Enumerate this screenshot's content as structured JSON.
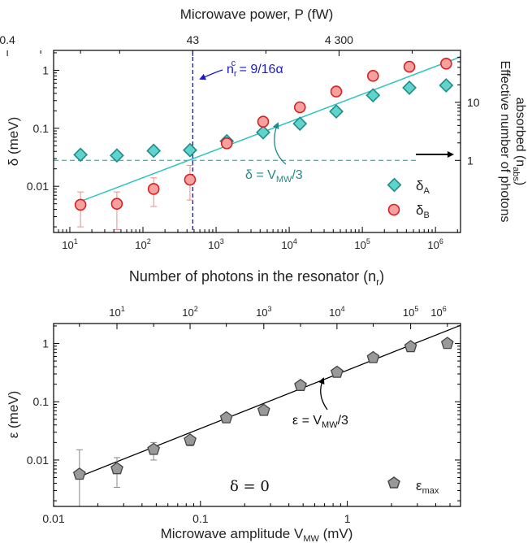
{
  "chart_data": [
    {
      "type": "scatter",
      "x_scale": "log",
      "y_scale": "log",
      "xlim": [
        6,
        2200000
      ],
      "ylim": [
        0.0016,
        2.2
      ],
      "xlabel": "Number of photons in the resonator (n",
      "xlabel_sub": "r",
      "xlabel_end": ")",
      "ylabel": "δ (meV)",
      "top_axis_label": "Microwave power, P (fW)",
      "top_ticks": [
        {
          "n": 1.4,
          "label": "0.4"
        },
        {
          "n": 480,
          "label": "43"
        },
        {
          "n": 48000,
          "label": "4 300"
        }
      ],
      "right_axis_label_line1": "Effective number of photons",
      "right_axis_label_line2": "absorbed (n",
      "right_axis_label_sub": "abs",
      "right_axis_label_end": ")",
      "right_ticks": [
        {
          "y": 0.028,
          "label": "1"
        },
        {
          "y": 0.28,
          "label": "10"
        }
      ],
      "x_tick_labels": [
        {
          "v": 10,
          "base": "10",
          "exp": "1"
        },
        {
          "v": 100,
          "base": "10",
          "exp": "2"
        },
        {
          "v": 1000,
          "base": "10",
          "exp": "3"
        },
        {
          "v": 10000,
          "base": "10",
          "exp": "4"
        },
        {
          "v": 100000,
          "base": "10",
          "exp": "5"
        },
        {
          "v": 1000000,
          "base": "10",
          "exp": "6"
        }
      ],
      "y_tick_labels": [
        {
          "v": 0.01,
          "label": "0.01"
        },
        {
          "v": 0.1,
          "label": "0.1"
        },
        {
          "v": 1,
          "label": "1"
        }
      ],
      "series": [
        {
          "name": "δ",
          "name_sub": "A",
          "marker": "diamond",
          "fill": "#5fd3cc",
          "stroke": "#1f8c88",
          "x": [
            14,
            44,
            140,
            440,
            1400,
            4400,
            14000,
            44000,
            140000,
            440000,
            1400000
          ],
          "y": [
            0.035,
            0.034,
            0.041,
            0.042,
            0.06,
            0.085,
            0.12,
            0.195,
            0.37,
            0.5,
            0.55
          ]
        },
        {
          "name": "δ",
          "name_sub": "B",
          "marker": "circle",
          "fill": "#f7a0a0",
          "stroke": "#d82020",
          "x": [
            14,
            44,
            140,
            440,
            1400,
            4400,
            14000,
            44000,
            140000,
            440000,
            1400000
          ],
          "y": [
            0.0048,
            0.005,
            0.009,
            0.013,
            0.055,
            0.13,
            0.23,
            0.43,
            0.8,
            1.15,
            1.3
          ],
          "err_low": [
            0.0028,
            0.0032,
            0.0045,
            0.0072,
            0,
            0,
            0,
            0,
            0,
            0,
            0
          ],
          "err_high": [
            0.0032,
            0.003,
            0.005,
            0.01,
            0,
            0,
            0,
            0,
            0,
            0,
            0
          ]
        }
      ],
      "fit_line": {
        "x": [
          14,
          2200000
        ],
        "y": [
          0.0055,
          1.7
        ],
        "color": "#2ec4c0"
      },
      "fit_label_prefix": "δ = V",
      "fit_label_sub": "MW",
      "fit_label_suffix": "/3",
      "hline": {
        "y": 0.028,
        "color": "#2ec4c0"
      },
      "vline": {
        "x": 480,
        "color": "#1a1acc"
      },
      "vline_label_main": "n",
      "vline_label_sub": "r",
      "vline_label_sup": "c",
      "vline_label_suffix": " = 9/16α"
    },
    {
      "type": "scatter",
      "x_scale": "log",
      "y_scale": "log",
      "xlim": [
        0.01,
        5.9
      ],
      "ylim": [
        0.0016,
        2.2
      ],
      "xlabel": "Microwave amplitude V",
      "xlabel_sub": "MW",
      "xlabel_end": " (mV)",
      "ylabel": "ε (meV)",
      "x_tick_labels": [
        {
          "v": 0.01,
          "label": "0.01"
        },
        {
          "v": 0.1,
          "label": "0.1"
        },
        {
          "v": 1,
          "label": "1"
        }
      ],
      "y_tick_labels": [
        {
          "v": 0.01,
          "label": "0.01"
        },
        {
          "v": 0.1,
          "label": "0.1"
        },
        {
          "v": 1,
          "label": "1"
        }
      ],
      "top_ticks": [
        {
          "v": 0.027,
          "base": "10",
          "exp": "1"
        },
        {
          "v": 0.085,
          "base": "10",
          "exp": "2"
        },
        {
          "v": 0.27,
          "base": "10",
          "exp": "3"
        },
        {
          "v": 0.85,
          "base": "10",
          "exp": "4"
        },
        {
          "v": 2.7,
          "base": "10",
          "exp": "5"
        },
        {
          "v": 8.5,
          "base": "10",
          "exp": "6"
        }
      ],
      "series": [
        {
          "name": "ε",
          "name_sub": "max",
          "marker": "pentagon",
          "fill": "#999999",
          "stroke": "#444444",
          "x": [
            0.015,
            0.027,
            0.048,
            0.085,
            0.15,
            0.27,
            0.48,
            0.85,
            1.5,
            2.7,
            4.8
          ],
          "y": [
            0.0057,
            0.0071,
            0.0152,
            0.022,
            0.053,
            0.071,
            0.19,
            0.32,
            0.57,
            0.88,
            1.0
          ],
          "err_low": [
            0.0041,
            0.0037,
            0.0052,
            0.0045,
            0,
            0,
            0,
            0,
            0,
            0,
            0
          ],
          "err_high": [
            0.0093,
            0.0039,
            0.0048,
            0.0,
            0,
            0,
            0,
            0,
            0,
            0,
            0
          ]
        }
      ],
      "fit_line": {
        "x": [
          0.015,
          5.9
        ],
        "y": [
          0.0052,
          2.05
        ],
        "color": "#000000"
      },
      "fit_label_prefix": "ε = V",
      "fit_label_sub": "MW",
      "fit_label_suffix": "/3",
      "annotation": "δ = 0"
    }
  ]
}
